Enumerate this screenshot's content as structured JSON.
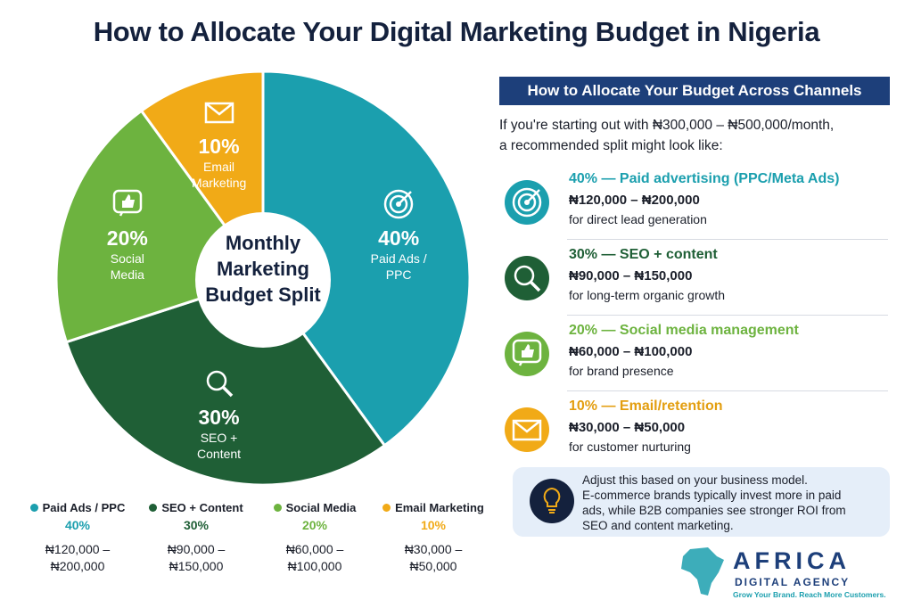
{
  "title": "How to Allocate Your Digital Marketing Budget in Nigeria",
  "chart_data": {
    "type": "pie",
    "center_label": "Monthly Marketing Budget Split",
    "categories": [
      "Paid Ads / PPC",
      "SEO + Content",
      "Social Media",
      "Email Marketing"
    ],
    "values": [
      40,
      30,
      20,
      10
    ],
    "value_labels": [
      "40%",
      "30%",
      "20%",
      "10%"
    ],
    "colors": [
      "#1b9fae",
      "#1f5f36",
      "#6db33f",
      "#f1aa17"
    ],
    "ranges": [
      "₦120,000 – ₦200,000",
      "₦90,000 – ₦150,000",
      "₦60,000 – ₦100,000",
      "₦30,000 – ₦50,000"
    ]
  },
  "panel": {
    "heading": "How to Allocate Your Budget Across Channels",
    "intro": [
      "If you're starting out with ₦300,000 – ₦500,000/month,",
      "a recommended split might look like:"
    ],
    "items": [
      {
        "title": "40% — Paid advertising (PPC/Meta Ads)",
        "note": "for direct lead generation"
      },
      {
        "title": "30% — SEO + content",
        "note": "for long-term organic growth"
      },
      {
        "title": "20% — Social media management",
        "note": "for brand presence"
      },
      {
        "title": "10% — Email/retention",
        "note": "for customer nurturing"
      }
    ]
  },
  "tip": [
    "Adjust this based on your business model.",
    "E-commerce brands typically invest more in paid",
    "ads, while B2B companies see stronger ROI from",
    "SEO and content marketing."
  ],
  "logo": {
    "name": "AFRICA",
    "sub": "DIGITAL AGENCY",
    "tagline": "Grow Your Brand. Reach More Customers."
  }
}
